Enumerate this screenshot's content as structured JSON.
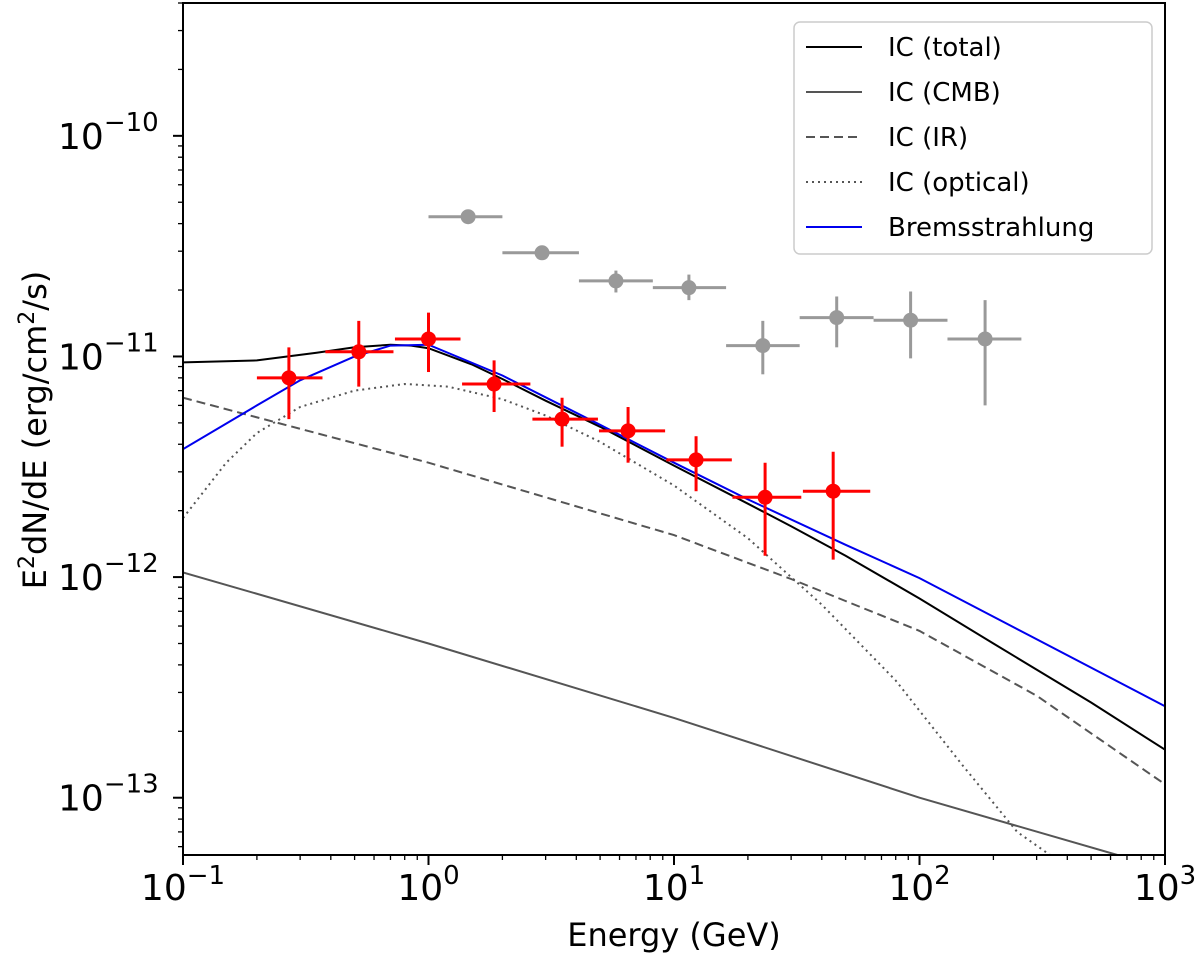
{
  "chart_data": {
    "type": "scatter",
    "scale": {
      "x": "log",
      "y": "log"
    },
    "xlabel": "Energy (GeV)",
    "ylabel": "E²dN/dE (erg/cm²/s)",
    "ylabel_parts": {
      "base": "E",
      "sup1": "2",
      "mid": "dN/dE (erg/cm",
      "sup2": "2",
      "end": "/s)"
    },
    "xlim": [
      0.1,
      1000
    ],
    "ylim": [
      5.5e-14,
      4e-10
    ],
    "x_ticks": [
      {
        "value": 0.1,
        "base": "10",
        "exp": "−1"
      },
      {
        "value": 1,
        "base": "10",
        "exp": "0"
      },
      {
        "value": 10,
        "base": "10",
        "exp": "1"
      },
      {
        "value": 100,
        "base": "10",
        "exp": "2"
      },
      {
        "value": 1000,
        "base": "10",
        "exp": "3"
      }
    ],
    "y_ticks": [
      {
        "value": 1e-13,
        "base": "10",
        "exp": "−13"
      },
      {
        "value": 1e-12,
        "base": "10",
        "exp": "−12"
      },
      {
        "value": 1e-11,
        "base": "10",
        "exp": "−11"
      },
      {
        "value": 1e-10,
        "base": "10",
        "exp": "−10"
      }
    ],
    "legend_position": "top-right",
    "legend": [
      {
        "label": "IC (total)",
        "color": "#000000",
        "style": "solid"
      },
      {
        "label": "IC (CMB)",
        "color": "#555555",
        "style": "solid"
      },
      {
        "label": "IC (IR)",
        "color": "#555555",
        "style": "dashed"
      },
      {
        "label": "IC (optical)",
        "color": "#555555",
        "style": "dotted"
      },
      {
        "label": "Bremsstrahlung",
        "color": "#0000ee",
        "style": "solid"
      }
    ],
    "series": [
      {
        "name": "IC (total)",
        "color": "#000000",
        "style": "solid",
        "x": [
          0.1,
          0.2,
          0.35,
          0.5,
          0.7,
          0.85,
          1.0,
          1.5,
          2,
          3,
          5,
          10,
          20,
          30,
          50,
          100,
          200,
          500,
          1000
        ],
        "y": [
          9.4e-12,
          9.6e-12,
          1.04e-11,
          1.1e-11,
          1.13e-11,
          1.12e-11,
          1.09e-11,
          9.2e-12,
          7.9e-12,
          6.3e-12,
          4.8e-12,
          3.2e-12,
          2.15e-12,
          1.7e-12,
          1.25e-12,
          8e-13,
          5e-13,
          2.7e-13,
          1.65e-13
        ]
      },
      {
        "name": "IC (CMB)",
        "color": "#555555",
        "style": "solid",
        "x": [
          0.1,
          1,
          10,
          100,
          640
        ],
        "y": [
          1.05e-12,
          5e-13,
          2.3e-13,
          1e-13,
          5.5e-14
        ]
      },
      {
        "name": "IC (IR)",
        "color": "#555555",
        "style": "dashed",
        "x": [
          0.1,
          0.3,
          1,
          3,
          10,
          30,
          100,
          300,
          1000
        ],
        "y": [
          6.5e-12,
          4.7e-12,
          3.3e-12,
          2.3e-12,
          1.55e-12,
          9.8e-13,
          5.7e-13,
          2.9e-13,
          1.15e-13
        ]
      },
      {
        "name": "IC (optical)",
        "color": "#555555",
        "style": "dotted",
        "x": [
          0.1,
          0.15,
          0.2,
          0.3,
          0.5,
          0.8,
          1.2,
          2,
          3,
          5,
          10,
          20,
          40,
          80,
          150,
          250,
          340
        ],
        "y": [
          1.85e-12,
          3.3e-12,
          4.5e-12,
          5.9e-12,
          7e-12,
          7.5e-12,
          7.3e-12,
          6.4e-12,
          5.4e-12,
          4.1e-12,
          2.6e-12,
          1.5e-12,
          7.5e-13,
          3.4e-13,
          1.4e-13,
          7e-14,
          5.5e-14
        ]
      },
      {
        "name": "Bremsstrahlung",
        "color": "#0000ee",
        "style": "solid",
        "x": [
          0.1,
          0.2,
          0.3,
          0.5,
          0.7,
          1.0,
          2,
          5,
          10,
          20,
          50,
          100,
          1000
        ],
        "y": [
          3.8e-12,
          6e-12,
          7.8e-12,
          1e-11,
          1.12e-11,
          1.13e-11,
          8.2e-12,
          4.9e-12,
          3.3e-12,
          2.25e-12,
          1.4e-12,
          9.9e-13,
          2.6e-13
        ]
      }
    ],
    "points": [
      {
        "name": "red data",
        "color": "#ff0000",
        "data": [
          {
            "x": 0.27,
            "xlo": 0.2,
            "xhi": 0.37,
            "y": 8e-12,
            "ylo": 5.2e-12,
            "yhi": 1.1e-11
          },
          {
            "x": 0.52,
            "xlo": 0.38,
            "xhi": 0.72,
            "y": 1.05e-11,
            "ylo": 7.3e-12,
            "yhi": 1.45e-11
          },
          {
            "x": 1.0,
            "xlo": 0.73,
            "xhi": 1.35,
            "y": 1.2e-11,
            "ylo": 8.5e-12,
            "yhi": 1.58e-11
          },
          {
            "x": 1.85,
            "xlo": 1.37,
            "xhi": 2.6,
            "y": 7.5e-12,
            "ylo": 5.6e-12,
            "yhi": 9.6e-12
          },
          {
            "x": 3.5,
            "xlo": 2.65,
            "xhi": 4.9,
            "y": 5.2e-12,
            "ylo": 3.9e-12,
            "yhi": 6.5e-12
          },
          {
            "x": 6.5,
            "xlo": 4.95,
            "xhi": 9.2,
            "y": 4.6e-12,
            "ylo": 3.3e-12,
            "yhi": 5.9e-12
          },
          {
            "x": 12.3,
            "xlo": 9.3,
            "xhi": 17.2,
            "y": 3.4e-12,
            "ylo": 2.45e-12,
            "yhi": 4.35e-12
          },
          {
            "x": 23.5,
            "xlo": 17.3,
            "xhi": 33,
            "y": 2.3e-12,
            "ylo": 1.25e-12,
            "yhi": 3.3e-12
          },
          {
            "x": 44.5,
            "xlo": 33.5,
            "xhi": 63,
            "y": 2.45e-12,
            "ylo": 1.2e-12,
            "yhi": 3.7e-12
          }
        ]
      },
      {
        "name": "gray data",
        "color": "#999999",
        "data": [
          {
            "x": 1.45,
            "xlo": 1.0,
            "xhi": 2.0,
            "y": 4.3e-11,
            "ylo": 4.1e-11,
            "yhi": 4.5e-11
          },
          {
            "x": 2.9,
            "xlo": 2.0,
            "xhi": 4.1,
            "y": 2.95e-11,
            "ylo": 2.85e-11,
            "yhi": 3.05e-11
          },
          {
            "x": 5.8,
            "xlo": 4.1,
            "xhi": 8.2,
            "y": 2.2e-11,
            "ylo": 1.95e-11,
            "yhi": 2.45e-11
          },
          {
            "x": 11.5,
            "xlo": 8.2,
            "xhi": 16.3,
            "y": 2.05e-11,
            "ylo": 1.8e-11,
            "yhi": 2.35e-11
          },
          {
            "x": 23,
            "xlo": 16.3,
            "xhi": 32.5,
            "y": 1.12e-11,
            "ylo": 8.3e-12,
            "yhi": 1.45e-11
          },
          {
            "x": 46,
            "xlo": 32.5,
            "xhi": 65,
            "y": 1.5e-11,
            "ylo": 1.1e-11,
            "yhi": 1.87e-11
          },
          {
            "x": 92,
            "xlo": 65,
            "xhi": 130,
            "y": 1.46e-11,
            "ylo": 9.8e-12,
            "yhi": 1.97e-11
          },
          {
            "x": 185,
            "xlo": 130,
            "xhi": 260,
            "y": 1.2e-11,
            "ylo": 6e-12,
            "yhi": 1.8e-11
          }
        ]
      }
    ]
  }
}
